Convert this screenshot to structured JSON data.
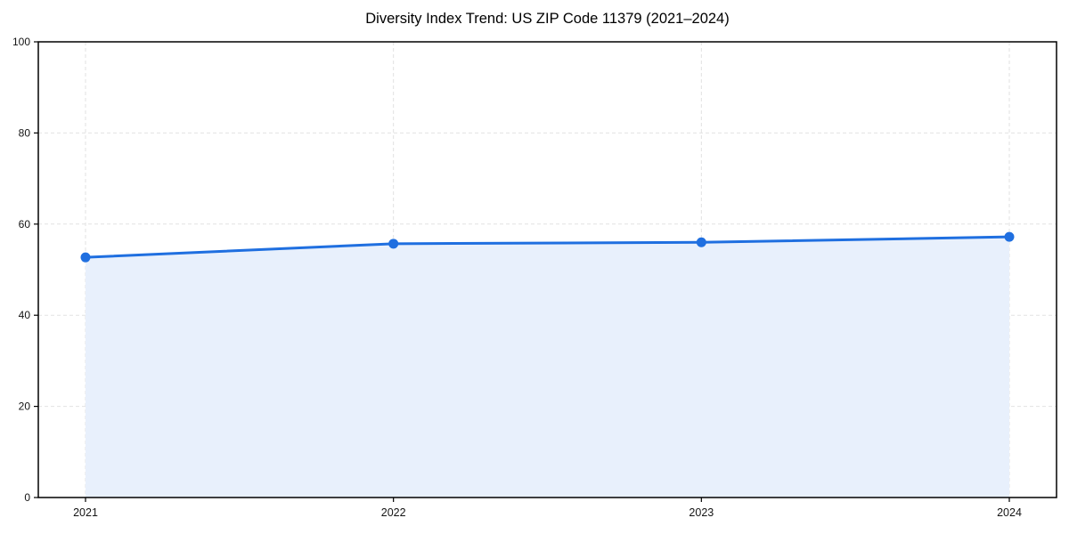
{
  "title": "Diversity Index Trend: US ZIP Code 11379 (2021–2024)",
  "chart_data": {
    "type": "area",
    "title": "Diversity Index Trend: US ZIP Code 11379 (2021–2024)",
    "x": [
      "2021",
      "2022",
      "2023",
      "2024"
    ],
    "series": [
      {
        "name": "Diversity Index",
        "values": [
          52.7,
          55.7,
          56.0,
          57.2
        ]
      }
    ],
    "xlabel": "",
    "ylabel": "",
    "ylim": [
      0,
      100
    ],
    "yticks": [
      0,
      20,
      40,
      60,
      80,
      100
    ],
    "grid": "on",
    "grid_style": "dashed",
    "legend": "none",
    "line_color": "#1f6fe0",
    "fill_color": "#e8f0fc",
    "marker": "circle",
    "frame": "full-box"
  }
}
